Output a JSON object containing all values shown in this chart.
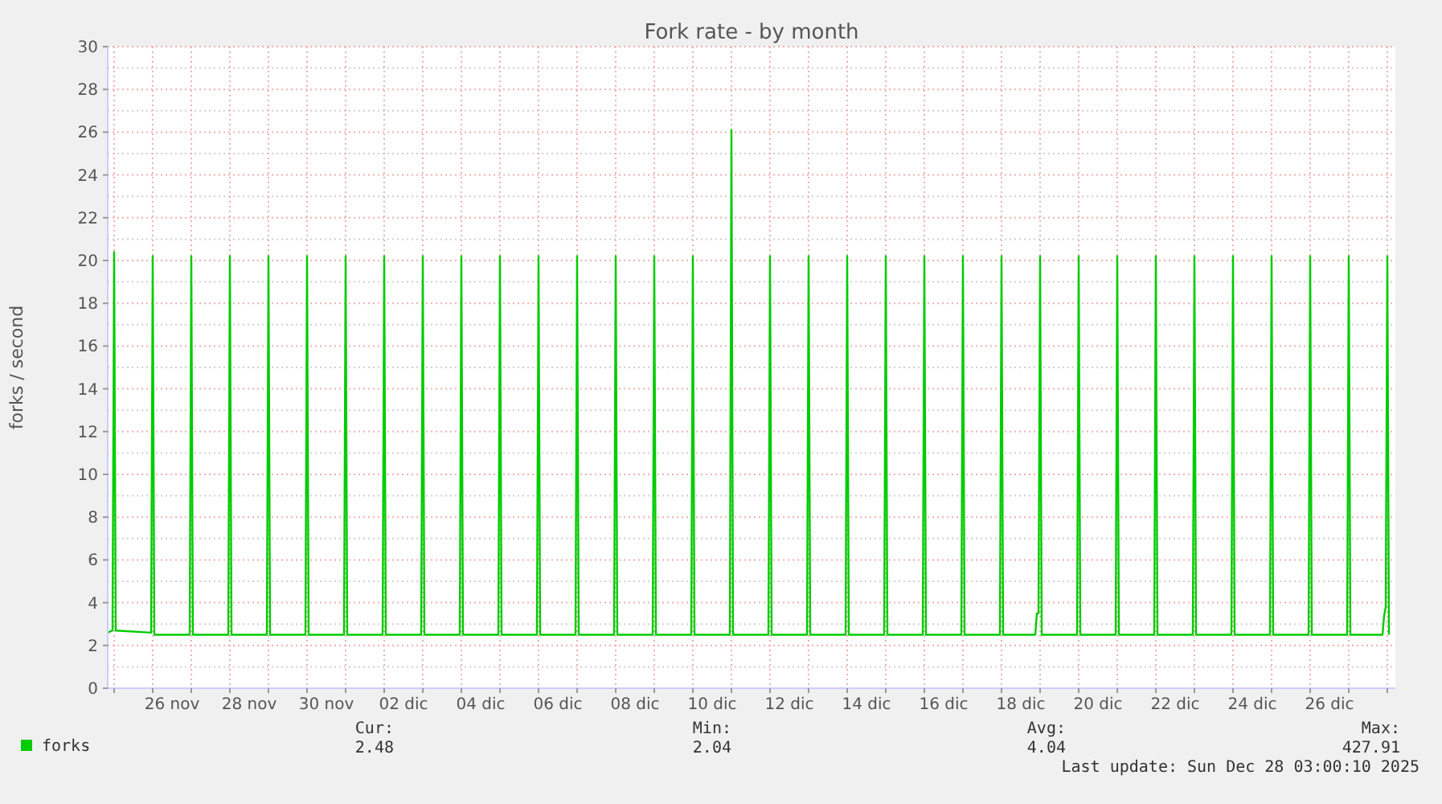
{
  "chart_data": {
    "type": "line",
    "title": "Fork rate - by month",
    "ylabel": "forks / second",
    "xlim": [
      "2025-11-24T20:00",
      "2025-12-28T05:00"
    ],
    "xticks": [
      {
        "value": "2025-11-25T00:00",
        "label": null
      },
      {
        "value": "2025-11-26T00:00",
        "label": null
      },
      {
        "value": "2025-11-26T12:00",
        "label": "26 nov"
      },
      {
        "value": "2025-11-27T00:00",
        "label": null
      },
      {
        "value": "2025-11-28T00:00",
        "label": null
      },
      {
        "value": "2025-11-28T12:00",
        "label": "28 nov"
      },
      {
        "value": "2025-11-29T00:00",
        "label": null
      },
      {
        "value": "2025-11-30T00:00",
        "label": null
      },
      {
        "value": "2025-11-30T12:00",
        "label": "30 nov"
      },
      {
        "value": "2025-12-01T00:00",
        "label": null
      },
      {
        "value": "2025-12-02T00:00",
        "label": null
      },
      {
        "value": "2025-12-02T12:00",
        "label": "02 dic"
      },
      {
        "value": "2025-12-03T00:00",
        "label": null
      },
      {
        "value": "2025-12-04T00:00",
        "label": null
      },
      {
        "value": "2025-12-04T12:00",
        "label": "04 dic"
      },
      {
        "value": "2025-12-05T00:00",
        "label": null
      },
      {
        "value": "2025-12-06T00:00",
        "label": null
      },
      {
        "value": "2025-12-06T12:00",
        "label": "06 dic"
      },
      {
        "value": "2025-12-07T00:00",
        "label": null
      },
      {
        "value": "2025-12-08T00:00",
        "label": null
      },
      {
        "value": "2025-12-08T12:00",
        "label": "08 dic"
      },
      {
        "value": "2025-12-09T00:00",
        "label": null
      },
      {
        "value": "2025-12-10T00:00",
        "label": null
      },
      {
        "value": "2025-12-10T12:00",
        "label": "10 dic"
      },
      {
        "value": "2025-12-11T00:00",
        "label": null
      },
      {
        "value": "2025-12-12T00:00",
        "label": null
      },
      {
        "value": "2025-12-12T12:00",
        "label": "12 dic"
      },
      {
        "value": "2025-12-13T00:00",
        "label": null
      },
      {
        "value": "2025-12-14T00:00",
        "label": null
      },
      {
        "value": "2025-12-14T12:00",
        "label": "14 dic"
      },
      {
        "value": "2025-12-15T00:00",
        "label": null
      },
      {
        "value": "2025-12-16T00:00",
        "label": null
      },
      {
        "value": "2025-12-16T12:00",
        "label": "16 dic"
      },
      {
        "value": "2025-12-17T00:00",
        "label": null
      },
      {
        "value": "2025-12-18T00:00",
        "label": null
      },
      {
        "value": "2025-12-18T12:00",
        "label": "18 dic"
      },
      {
        "value": "2025-12-19T00:00",
        "label": null
      },
      {
        "value": "2025-12-20T00:00",
        "label": null
      },
      {
        "value": "2025-12-20T12:00",
        "label": "20 dic"
      },
      {
        "value": "2025-12-21T00:00",
        "label": null
      },
      {
        "value": "2025-12-22T00:00",
        "label": null
      },
      {
        "value": "2025-12-22T12:00",
        "label": "22 dic"
      },
      {
        "value": "2025-12-23T00:00",
        "label": null
      },
      {
        "value": "2025-12-24T00:00",
        "label": null
      },
      {
        "value": "2025-12-24T12:00",
        "label": "24 dic"
      },
      {
        "value": "2025-12-25T00:00",
        "label": null
      },
      {
        "value": "2025-12-26T00:00",
        "label": null
      },
      {
        "value": "2025-12-26T12:00",
        "label": "26 dic"
      },
      {
        "value": "2025-12-27T00:00",
        "label": null
      },
      {
        "value": "2025-12-28T00:00",
        "label": null
      }
    ],
    "ylim": [
      0,
      30
    ],
    "yticks": [
      0,
      2,
      4,
      6,
      8,
      10,
      12,
      14,
      16,
      18,
      20,
      22,
      24,
      26,
      28,
      30
    ],
    "grid": true,
    "legend": "bottom left",
    "annotations": [
      "Cur:",
      "2.48",
      "Min:",
      "2.04",
      "Avg:",
      "4.04",
      "Max:",
      "427.91",
      "Last update: Sun Dec 28 03:00:10 2025"
    ],
    "series": [
      {
        "name": "forks",
        "color": "#00cc00",
        "x": [
          "2025-11-24T20:00",
          "2025-11-24T23:00",
          "2025-11-25T00:00",
          "2025-11-25T01:00",
          "2025-11-25T23:00",
          "2025-11-26T00:00",
          "2025-11-26T01:00",
          "2025-11-26T23:00",
          "2025-11-27T00:00",
          "2025-11-27T01:00",
          "2025-11-27T23:00",
          "2025-11-28T00:00",
          "2025-11-28T01:00",
          "2025-11-28T23:00",
          "2025-11-29T00:00",
          "2025-11-29T01:00",
          "2025-11-29T23:00",
          "2025-11-30T00:00",
          "2025-11-30T01:00",
          "2025-11-30T23:00",
          "2025-12-01T00:00",
          "2025-12-01T01:00",
          "2025-12-01T23:00",
          "2025-12-02T00:00",
          "2025-12-02T01:00",
          "2025-12-02T23:00",
          "2025-12-03T00:00",
          "2025-12-03T01:00",
          "2025-12-03T23:00",
          "2025-12-04T00:00",
          "2025-12-04T01:00",
          "2025-12-04T23:00",
          "2025-12-05T00:00",
          "2025-12-05T01:00",
          "2025-12-05T23:00",
          "2025-12-06T00:00",
          "2025-12-06T01:00",
          "2025-12-06T23:00",
          "2025-12-07T00:00",
          "2025-12-07T01:00",
          "2025-12-07T23:00",
          "2025-12-08T00:00",
          "2025-12-08T01:00",
          "2025-12-08T23:00",
          "2025-12-09T00:00",
          "2025-12-09T01:00",
          "2025-12-09T23:00",
          "2025-12-10T00:00",
          "2025-12-10T01:00",
          "2025-12-10T23:00",
          "2025-12-11T00:00",
          "2025-12-11T01:00",
          "2025-12-11T23:00",
          "2025-12-12T00:00",
          "2025-12-12T01:00",
          "2025-12-12T23:00",
          "2025-12-13T00:00",
          "2025-12-13T01:00",
          "2025-12-13T23:00",
          "2025-12-14T00:00",
          "2025-12-14T01:00",
          "2025-12-14T23:00",
          "2025-12-15T00:00",
          "2025-12-15T01:00",
          "2025-12-15T23:00",
          "2025-12-16T00:00",
          "2025-12-16T01:00",
          "2025-12-16T23:00",
          "2025-12-17T00:00",
          "2025-12-17T01:00",
          "2025-12-17T23:00",
          "2025-12-18T00:00",
          "2025-12-18T01:00",
          "2025-12-18T21:00",
          "2025-12-18T22:00",
          "2025-12-18T23:00",
          "2025-12-19T00:00",
          "2025-12-19T01:00",
          "2025-12-19T23:00",
          "2025-12-20T00:00",
          "2025-12-20T01:00",
          "2025-12-20T23:00",
          "2025-12-21T00:00",
          "2025-12-21T01:00",
          "2025-12-21T23:00",
          "2025-12-22T00:00",
          "2025-12-22T01:00",
          "2025-12-22T23:00",
          "2025-12-23T00:00",
          "2025-12-23T01:00",
          "2025-12-23T23:00",
          "2025-12-24T00:00",
          "2025-12-24T01:00",
          "2025-12-24T23:00",
          "2025-12-25T00:00",
          "2025-12-25T01:00",
          "2025-12-25T23:00",
          "2025-12-26T00:00",
          "2025-12-26T01:00",
          "2025-12-26T23:00",
          "2025-12-27T00:00",
          "2025-12-27T01:00",
          "2025-12-27T21:00",
          "2025-12-27T22:00",
          "2025-12-27T23:00",
          "2025-12-28T00:00",
          "2025-12-28T01:00"
        ],
        "values": [
          2.6,
          2.7,
          20.4,
          2.7,
          2.6,
          20.2,
          2.5,
          2.5,
          20.2,
          2.5,
          2.5,
          20.2,
          2.5,
          2.5,
          20.2,
          2.5,
          2.5,
          20.2,
          2.5,
          2.5,
          20.2,
          2.5,
          2.5,
          20.2,
          2.5,
          2.5,
          20.2,
          2.5,
          2.5,
          20.2,
          2.5,
          2.5,
          20.2,
          2.5,
          2.5,
          20.2,
          2.5,
          2.5,
          20.2,
          2.5,
          2.5,
          20.2,
          2.5,
          2.5,
          20.2,
          2.5,
          2.5,
          20.2,
          2.5,
          2.5,
          26.1,
          2.5,
          2.5,
          20.2,
          2.5,
          2.5,
          20.2,
          2.5,
          2.5,
          20.2,
          2.5,
          2.5,
          20.2,
          2.5,
          2.5,
          20.2,
          2.5,
          2.5,
          20.2,
          2.5,
          2.5,
          20.2,
          2.5,
          2.5,
          3.5,
          3.5,
          20.2,
          2.5,
          2.5,
          20.2,
          2.5,
          2.5,
          20.2,
          2.5,
          2.5,
          20.2,
          2.5,
          2.5,
          20.2,
          2.5,
          2.5,
          20.2,
          2.5,
          2.5,
          20.2,
          2.5,
          2.5,
          20.2,
          2.5,
          2.5,
          20.2,
          2.5,
          2.5,
          3.4,
          3.8,
          20.2,
          2.5
        ]
      }
    ]
  }
}
